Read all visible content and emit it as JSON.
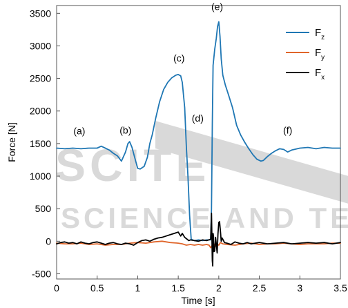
{
  "chart_data": {
    "type": "line",
    "xlabel": "Time [s]",
    "ylabel": "Force [N]",
    "xlim": [
      0,
      3.5
    ],
    "ylim": [
      -580,
      3620
    ],
    "xticks": [
      0,
      0.5,
      1,
      1.5,
      2,
      2.5,
      3,
      3.5
    ],
    "xtick_labels": [
      "0",
      "0.5",
      "1",
      "1.5",
      "2",
      "2.5",
      "3",
      "3.5"
    ],
    "yticks": [
      -500,
      0,
      500,
      1000,
      1500,
      2000,
      2500,
      3000,
      3500
    ],
    "ytick_labels": [
      "-500",
      "0",
      "500",
      "1000",
      "1500",
      "2000",
      "2500",
      "3000",
      "3500"
    ],
    "grid": false,
    "legend_position": "top-right",
    "legend": [
      {
        "base": "F",
        "sub": "z",
        "color": "#1f77b4"
      },
      {
        "base": "F",
        "sub": "y",
        "color": "#e0652a"
      },
      {
        "base": "F",
        "sub": "x",
        "color": "#000000"
      }
    ],
    "annotations": [
      {
        "text": "(a)",
        "x": 0.28,
        "y": 1640
      },
      {
        "text": "(b)",
        "x": 0.85,
        "y": 1650
      },
      {
        "text": "(c)",
        "x": 1.51,
        "y": 2760
      },
      {
        "text": "(d)",
        "x": 1.74,
        "y": 1840
      },
      {
        "text": "(e)",
        "x": 1.98,
        "y": 3550
      },
      {
        "text": "(f)",
        "x": 2.85,
        "y": 1650
      }
    ],
    "series": [
      {
        "key": "Fz",
        "color": "#1f77b4",
        "x": [
          0,
          0.1,
          0.2,
          0.3,
          0.4,
          0.5,
          0.55,
          0.6,
          0.65,
          0.7,
          0.75,
          0.8,
          0.85,
          0.88,
          0.9,
          0.93,
          0.96,
          1.0,
          1.03,
          1.08,
          1.12,
          1.15,
          1.18,
          1.22,
          1.27,
          1.32,
          1.37,
          1.42,
          1.47,
          1.5,
          1.53,
          1.55,
          1.58,
          1.6,
          1.62,
          1.64,
          1.66,
          1.7,
          1.75,
          1.8,
          1.85,
          1.9,
          1.91,
          1.92,
          1.93,
          1.95,
          1.97,
          1.985,
          2.0,
          2.015,
          2.03,
          2.05,
          2.08,
          2.12,
          2.17,
          2.22,
          2.27,
          2.32,
          2.37,
          2.42,
          2.47,
          2.52,
          2.55,
          2.6,
          2.65,
          2.7,
          2.75,
          2.8,
          2.85,
          2.9,
          3.0,
          3.1,
          3.2,
          3.3,
          3.4,
          3.5
        ],
        "y": [
          1430,
          1420,
          1430,
          1420,
          1430,
          1430,
          1460,
          1430,
          1400,
          1350,
          1310,
          1230,
          1370,
          1500,
          1530,
          1440,
          1300,
          1120,
          1110,
          1150,
          1290,
          1500,
          1640,
          1880,
          2140,
          2330,
          2440,
          2510,
          2550,
          2560,
          2540,
          2440,
          2050,
          1450,
          1000,
          400,
          30,
          10,
          20,
          10,
          20,
          20,
          500,
          1800,
          2700,
          2950,
          3120,
          3300,
          3370,
          3150,
          2800,
          2550,
          2400,
          2250,
          2050,
          1780,
          1630,
          1520,
          1420,
          1330,
          1260,
          1230,
          1240,
          1300,
          1350,
          1390,
          1420,
          1410,
          1370,
          1400,
          1430,
          1440,
          1420,
          1440,
          1430,
          1430
        ]
      },
      {
        "key": "Fy",
        "color": "#e0652a",
        "x": [
          0,
          0.1,
          0.2,
          0.3,
          0.4,
          0.5,
          0.6,
          0.7,
          0.8,
          0.9,
          1.0,
          1.1,
          1.2,
          1.3,
          1.4,
          1.5,
          1.55,
          1.6,
          1.65,
          1.7,
          1.75,
          1.8,
          1.85,
          1.88,
          1.9,
          1.92,
          1.94,
          1.96,
          1.98,
          2.0,
          2.02,
          2.05,
          2.1,
          2.2,
          2.3,
          2.4,
          2.5,
          2.6,
          2.7,
          2.8,
          2.9,
          3.0,
          3.1,
          3.2,
          3.3,
          3.4,
          3.5
        ],
        "y": [
          -30,
          -40,
          -40,
          -30,
          -50,
          -40,
          -60,
          -50,
          -50,
          -30,
          -20,
          -30,
          -10,
          0,
          -20,
          -30,
          -40,
          -60,
          -50,
          -60,
          -50,
          -60,
          -50,
          -60,
          -100,
          -60,
          -40,
          -80,
          -40,
          -60,
          -20,
          -40,
          -50,
          -60,
          -40,
          -30,
          -50,
          -40,
          -40,
          -30,
          -40,
          -50,
          -40,
          -40,
          -40,
          -30,
          -30
        ]
      },
      {
        "key": "Fx",
        "color": "#000000",
        "x": [
          0,
          0.05,
          0.1,
          0.15,
          0.2,
          0.25,
          0.3,
          0.35,
          0.4,
          0.45,
          0.5,
          0.55,
          0.6,
          0.65,
          0.7,
          0.75,
          0.8,
          0.85,
          0.9,
          0.95,
          1.0,
          1.05,
          1.1,
          1.15,
          1.2,
          1.25,
          1.3,
          1.35,
          1.4,
          1.45,
          1.5,
          1.53,
          1.55,
          1.58,
          1.61,
          1.63,
          1.65,
          1.7,
          1.75,
          1.8,
          1.85,
          1.9,
          1.91,
          1.92,
          1.925,
          1.93,
          1.935,
          1.94,
          1.95,
          1.96,
          1.97,
          1.98,
          1.99,
          2.0,
          2.01,
          2.02,
          2.03,
          2.04,
          2.05,
          2.07,
          2.1,
          2.15,
          2.2,
          2.25,
          2.3,
          2.35,
          2.4,
          2.45,
          2.5,
          2.6,
          2.7,
          2.8,
          2.9,
          3.0,
          3.1,
          3.2,
          3.3,
          3.4,
          3.5
        ],
        "y": [
          -40,
          -20,
          -10,
          -30,
          -20,
          -40,
          -10,
          -30,
          -40,
          -20,
          -10,
          -30,
          -50,
          -30,
          -20,
          -40,
          -50,
          -30,
          -40,
          -60,
          -20,
          10,
          20,
          0,
          30,
          50,
          60,
          80,
          100,
          120,
          140,
          80,
          120,
          60,
          30,
          10,
          20,
          10,
          0,
          20,
          10,
          30,
          430,
          -300,
          -380,
          120,
          80,
          -160,
          -150,
          60,
          -50,
          -180,
          120,
          290,
          300,
          160,
          0,
          50,
          30,
          -20,
          -30,
          -50,
          -10,
          -30,
          -40,
          -20,
          -40,
          -30,
          -20,
          -40,
          -30,
          -20,
          -40,
          -30,
          -20,
          -30,
          -20,
          -40,
          -20
        ]
      }
    ]
  }
}
